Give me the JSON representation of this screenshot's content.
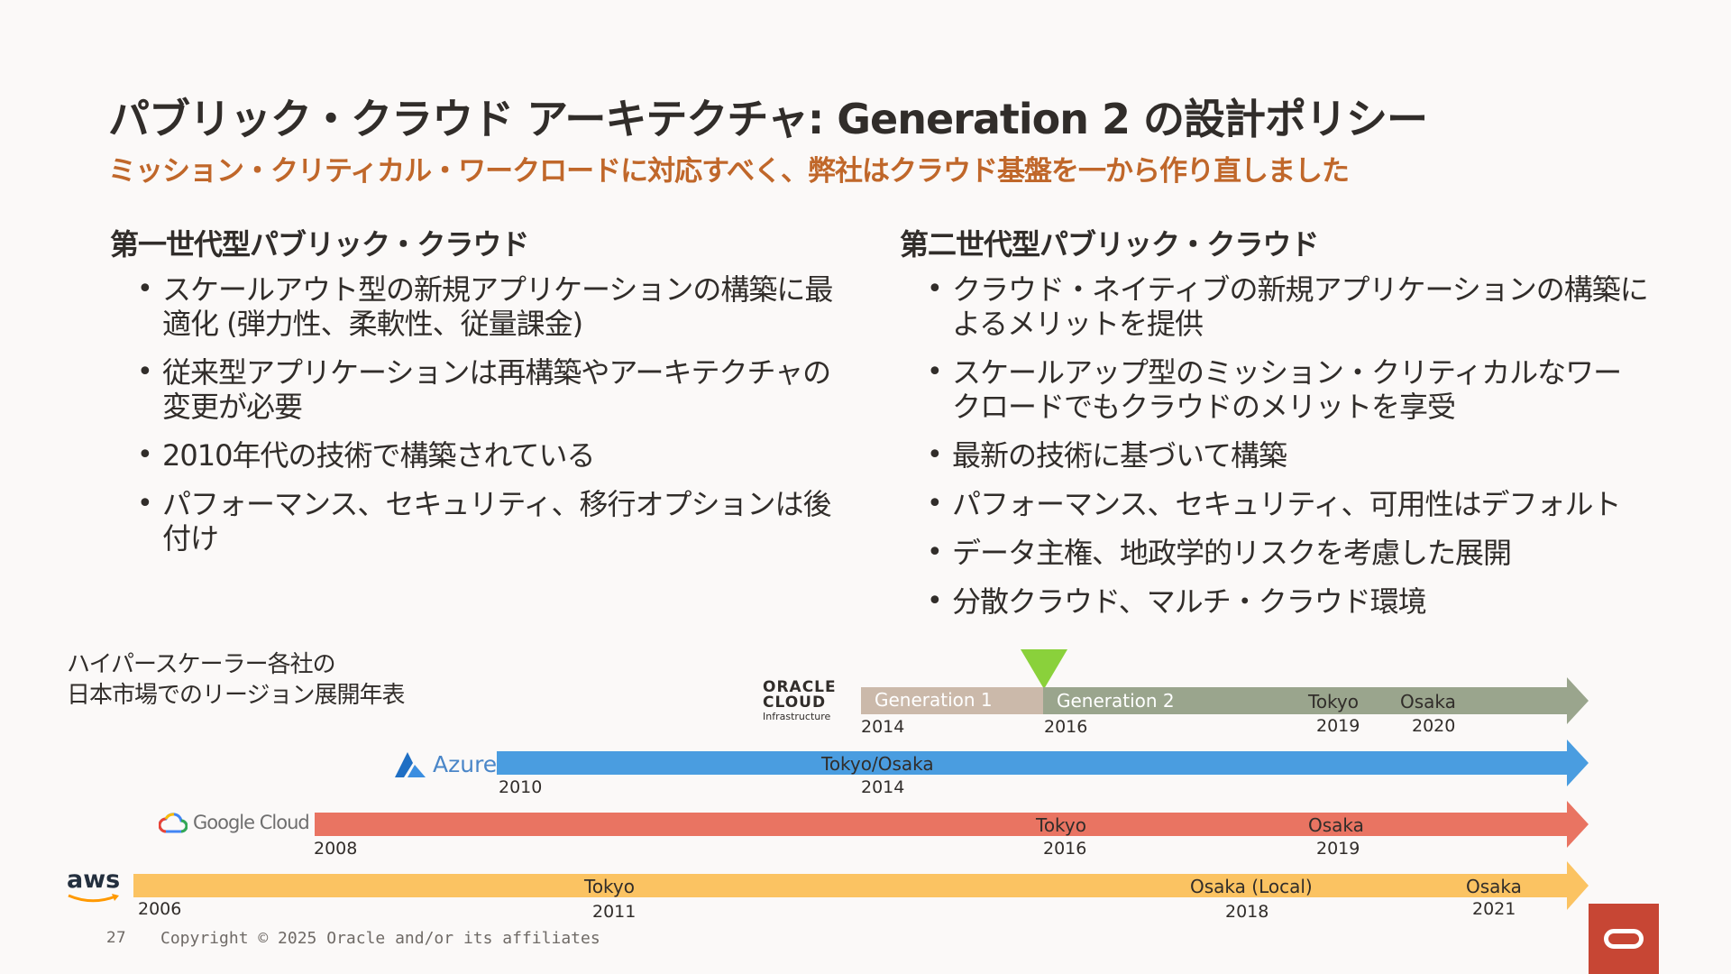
{
  "slide": {
    "title": "パブリック・クラウド アーキテクチャ: Generation 2 の設計ポリシー",
    "subtitle": "ミッション・クリティカル・ワークロードに対応すべく、弊社はクラウド基盤を一から作り直しました",
    "accent_color": "#c0672a"
  },
  "left_column": {
    "heading": "第一世代型パブリック・クラウド",
    "bullets": [
      "スケールアウト型の新規アプリケーションの構築に最適化 (弾力性、柔軟性、従量課金)",
      "従来型アプリケーションは再構築やアーキテクチャの変更が必要",
      "2010年代の技術で構築されている",
      "パフォーマンス、セキュリティ、移行オプションは後付け"
    ]
  },
  "right_column": {
    "heading": "第二世代型パブリック・クラウド",
    "bullets": [
      "クラウド・ネイティブの新規アプリケーションの構築によるメリットを提供",
      "スケールアップ型のミッション・クリティカルなワークロードでもクラウドのメリットを享受",
      "最新の技術に基づいて構築",
      "パフォーマンス、セキュリティ、可用性はデフォルト",
      "データ主権、地政学的リスクを考慮した展開",
      "分散クラウド、マルチ・クラウド環境"
    ]
  },
  "timeline": {
    "caption_line1": "ハイパースケーラー各社の",
    "caption_line2": "日本市場でのリージョン展開年表",
    "oracle": {
      "logo_line1": "ORACLE",
      "logo_line2": "CLOUD",
      "logo_line3": "Infrastructure",
      "gen1_label": "Generation 1",
      "gen2_label": "Generation 2",
      "start_year": "2014",
      "gen2_year": "2016",
      "events": [
        {
          "label": "Tokyo",
          "year": "2019"
        },
        {
          "label": "Osaka",
          "year": "2020"
        }
      ],
      "gen1_color": "#cbb9aa",
      "gen2_color": "#9aa58d"
    },
    "azure": {
      "logo_text": "Azure",
      "start_year": "2010",
      "events": [
        {
          "label": "Tokyo/Osaka",
          "year": "2014"
        }
      ],
      "color": "#4a9de0"
    },
    "google": {
      "logo_text": "Google Cloud",
      "start_year": "2008",
      "events": [
        {
          "label": "Tokyo",
          "year": "2016"
        },
        {
          "label": "Osaka",
          "year": "2019"
        }
      ],
      "color": "#e97462"
    },
    "aws": {
      "logo_text": "aws",
      "start_year": "2006",
      "events": [
        {
          "label": "Tokyo",
          "year": "2011"
        },
        {
          "label": "Osaka (Local)",
          "year": "2018"
        },
        {
          "label": "Osaka",
          "year": "2021"
        }
      ],
      "color": "#fbc362"
    }
  },
  "footer": {
    "page_number": "27",
    "copyright": "Copyright © 2025 Oracle and/or its affiliates"
  }
}
